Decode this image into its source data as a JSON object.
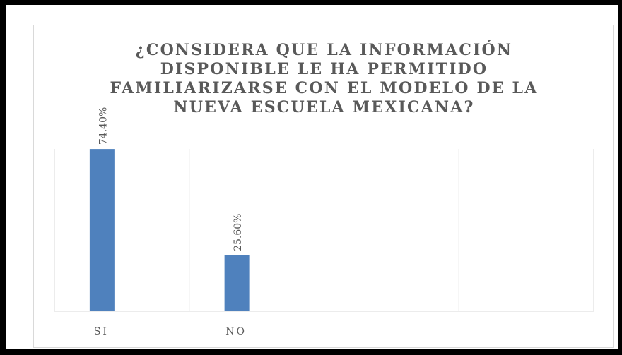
{
  "chart_data": {
    "type": "bar",
    "title_lines": [
      "¿CONSIDERA QUE LA INFORMACIÓN",
      "DISPONIBLE LE HA PERMITIDO",
      "FAMILIARIZARSE CON EL MODELO DE LA",
      "NUEVA ESCUELA MEXICANA?"
    ],
    "categories": [
      "SI",
      "NO",
      "",
      ""
    ],
    "values": [
      74.4,
      25.6,
      null,
      null
    ],
    "data_labels": [
      "74.40%",
      "25.60%",
      "",
      ""
    ],
    "ylim": [
      0,
      100
    ],
    "bar_color": "#4f81bd",
    "grid": "vertical category separators",
    "legend": "none"
  }
}
